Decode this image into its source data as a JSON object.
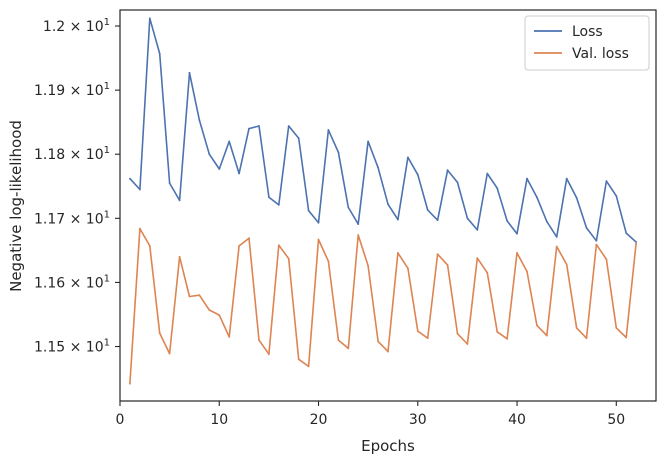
{
  "chart_data": {
    "type": "line",
    "title": "",
    "xlabel": "Epochs",
    "ylabel": "Negative log-likelihood",
    "xlim": [
      0,
      54
    ],
    "ylim": [
      11.415,
      12.025
    ],
    "grid": false,
    "legend_position": "top-right",
    "x_ticks": [
      0,
      10,
      20,
      30,
      40,
      50
    ],
    "x_tick_labels": [
      "0",
      "10",
      "20",
      "30",
      "40",
      "50"
    ],
    "y_ticks": [
      11.5,
      11.6,
      11.7,
      11.8,
      11.9,
      12.0
    ],
    "y_tick_labels": [
      {
        "mantissa": "1.15",
        "base": "10",
        "exp": "1"
      },
      {
        "mantissa": "1.16",
        "base": "10",
        "exp": "1"
      },
      {
        "mantissa": "1.17",
        "base": "10",
        "exp": "1"
      },
      {
        "mantissa": "1.18",
        "base": "10",
        "exp": "1"
      },
      {
        "mantissa": "1.19",
        "base": "10",
        "exp": "1"
      },
      {
        "mantissa": "1.2",
        "base": "10",
        "exp": "1"
      }
    ],
    "x": [
      1,
      2,
      3,
      4,
      5,
      6,
      7,
      8,
      9,
      10,
      11,
      12,
      13,
      14,
      15,
      16,
      17,
      18,
      19,
      20,
      21,
      22,
      23,
      24,
      25,
      26,
      27,
      28,
      29,
      30,
      31,
      32,
      33,
      34,
      35,
      36,
      37,
      38,
      39,
      40,
      41,
      42,
      43,
      44,
      45,
      46,
      47,
      48,
      49,
      50,
      51,
      52
    ],
    "series": [
      {
        "name": "Loss",
        "color": "#4c72b0",
        "values": [
          11.762,
          11.745,
          12.012,
          11.957,
          11.755,
          11.728,
          11.927,
          11.853,
          11.8,
          11.777,
          11.82,
          11.77,
          11.84,
          11.844,
          11.733,
          11.721,
          11.844,
          11.825,
          11.712,
          11.693,
          11.838,
          11.803,
          11.717,
          11.691,
          11.82,
          11.779,
          11.722,
          11.698,
          11.795,
          11.768,
          11.713,
          11.697,
          11.775,
          11.756,
          11.7,
          11.682,
          11.77,
          11.747,
          11.696,
          11.676,
          11.762,
          11.733,
          11.695,
          11.671,
          11.762,
          11.732,
          11.685,
          11.665,
          11.758,
          11.735,
          11.677,
          11.663
        ]
      },
      {
        "name": "Val. loss",
        "color": "#dd8452",
        "values": [
          11.442,
          11.684,
          11.657,
          11.521,
          11.489,
          11.64,
          11.578,
          11.58,
          11.557,
          11.549,
          11.515,
          11.657,
          11.669,
          11.51,
          11.488,
          11.658,
          11.637,
          11.48,
          11.469,
          11.667,
          11.633,
          11.51,
          11.497,
          11.674,
          11.626,
          11.508,
          11.492,
          11.646,
          11.622,
          11.524,
          11.513,
          11.644,
          11.627,
          11.52,
          11.504,
          11.638,
          11.615,
          11.523,
          11.512,
          11.646,
          11.617,
          11.533,
          11.517,
          11.656,
          11.628,
          11.529,
          11.513,
          11.659,
          11.636,
          11.529,
          11.514,
          11.661
        ]
      }
    ]
  }
}
